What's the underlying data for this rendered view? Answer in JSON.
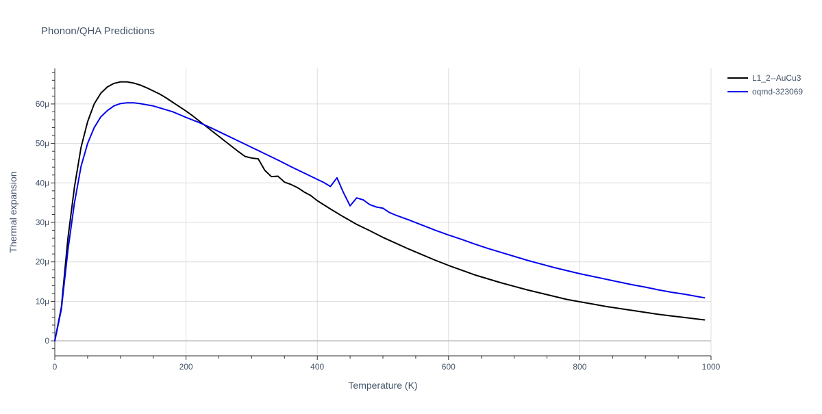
{
  "page": {
    "title": "Phonon/QHA Predictions"
  },
  "chart_data": {
    "type": "line",
    "title": "Phonon/QHA Predictions",
    "xlabel": "Temperature (K)",
    "ylabel": "Thermal expansion",
    "xlim": [
      0,
      1000
    ],
    "ylim": [
      -3.8e-06,
      6.9e-05
    ],
    "x_ticks": [
      0,
      200,
      400,
      600,
      800,
      1000
    ],
    "x_tick_labels": [
      "0",
      "200",
      "400",
      "600",
      "800",
      "1000"
    ],
    "y_ticks": [
      0,
      1e-05,
      2e-05,
      3e-05,
      4e-05,
      5e-05,
      6e-05
    ],
    "y_tick_labels": [
      "0",
      "10μ",
      "20μ",
      "30μ",
      "40μ",
      "50μ",
      "60μ"
    ],
    "grid": true,
    "legend_position": "top-right outside",
    "series": [
      {
        "name": "L1_2--AuCu3",
        "color": "#000000",
        "points": [
          [
            0,
            0
          ],
          [
            10,
            8.5e-06
          ],
          [
            20,
            2.6e-05
          ],
          [
            30,
            3.9e-05
          ],
          [
            40,
            4.9e-05
          ],
          [
            50,
            5.55e-05
          ],
          [
            60,
            6e-05
          ],
          [
            70,
            6.27e-05
          ],
          [
            80,
            6.43e-05
          ],
          [
            90,
            6.52e-05
          ],
          [
            100,
            6.56e-05
          ],
          [
            110,
            6.56e-05
          ],
          [
            120,
            6.53e-05
          ],
          [
            130,
            6.48e-05
          ],
          [
            140,
            6.41e-05
          ],
          [
            150,
            6.33e-05
          ],
          [
            160,
            6.25e-05
          ],
          [
            170,
            6.15e-05
          ],
          [
            180,
            6.04e-05
          ],
          [
            190,
            5.93e-05
          ],
          [
            200,
            5.82e-05
          ],
          [
            210,
            5.7e-05
          ],
          [
            220,
            5.57e-05
          ],
          [
            230,
            5.44e-05
          ],
          [
            240,
            5.31e-05
          ],
          [
            250,
            5.18e-05
          ],
          [
            260,
            5.05e-05
          ],
          [
            270,
            4.92e-05
          ],
          [
            280,
            4.79e-05
          ],
          [
            290,
            4.67e-05
          ],
          [
            300,
            4.63e-05
          ],
          [
            310,
            4.61e-05
          ],
          [
            320,
            4.32e-05
          ],
          [
            330,
            4.16e-05
          ],
          [
            340,
            4.17e-05
          ],
          [
            350,
            4.02e-05
          ],
          [
            360,
            3.96e-05
          ],
          [
            370,
            3.88e-05
          ],
          [
            380,
            3.77e-05
          ],
          [
            390,
            3.68e-05
          ],
          [
            400,
            3.55e-05
          ],
          [
            420,
            3.34e-05
          ],
          [
            440,
            3.14e-05
          ],
          [
            460,
            2.95e-05
          ],
          [
            480,
            2.79e-05
          ],
          [
            500,
            2.62e-05
          ],
          [
            520,
            2.47e-05
          ],
          [
            540,
            2.32e-05
          ],
          [
            560,
            2.18e-05
          ],
          [
            580,
            2.04e-05
          ],
          [
            600,
            1.91e-05
          ],
          [
            620,
            1.79e-05
          ],
          [
            640,
            1.67e-05
          ],
          [
            660,
            1.57e-05
          ],
          [
            680,
            1.47e-05
          ],
          [
            700,
            1.38e-05
          ],
          [
            720,
            1.29e-05
          ],
          [
            740,
            1.21e-05
          ],
          [
            760,
            1.13e-05
          ],
          [
            780,
            1.05e-05
          ],
          [
            800,
            9.9e-06
          ],
          [
            820,
            9.3e-06
          ],
          [
            840,
            8.7e-06
          ],
          [
            860,
            8.2e-06
          ],
          [
            880,
            7.7e-06
          ],
          [
            900,
            7.2e-06
          ],
          [
            920,
            6.7e-06
          ],
          [
            940,
            6.3e-06
          ],
          [
            960,
            5.9e-06
          ],
          [
            980,
            5.5e-06
          ],
          [
            990,
            5.3e-06
          ]
        ]
      },
      {
        "name": "oqmd-323069",
        "color": "#0000ee",
        "points": [
          [
            0,
            0
          ],
          [
            10,
            8e-06
          ],
          [
            20,
            2.3e-05
          ],
          [
            30,
            3.5e-05
          ],
          [
            40,
            4.42e-05
          ],
          [
            50,
            5e-05
          ],
          [
            60,
            5.4e-05
          ],
          [
            70,
            5.67e-05
          ],
          [
            80,
            5.83e-05
          ],
          [
            90,
            5.95e-05
          ],
          [
            100,
            6.01e-05
          ],
          [
            110,
            6.03e-05
          ],
          [
            120,
            6.03e-05
          ],
          [
            130,
            6.01e-05
          ],
          [
            140,
            5.98e-05
          ],
          [
            150,
            5.95e-05
          ],
          [
            160,
            5.9e-05
          ],
          [
            170,
            5.85e-05
          ],
          [
            180,
            5.8e-05
          ],
          [
            190,
            5.73e-05
          ],
          [
            200,
            5.66e-05
          ],
          [
            220,
            5.53e-05
          ],
          [
            240,
            5.38e-05
          ],
          [
            260,
            5.22e-05
          ],
          [
            280,
            5.06e-05
          ],
          [
            300,
            4.9e-05
          ],
          [
            320,
            4.74e-05
          ],
          [
            340,
            4.58e-05
          ],
          [
            360,
            4.41e-05
          ],
          [
            380,
            4.25e-05
          ],
          [
            400,
            4.09e-05
          ],
          [
            410,
            4.01e-05
          ],
          [
            420,
            3.91e-05
          ],
          [
            430,
            4.13e-05
          ],
          [
            440,
            3.75e-05
          ],
          [
            450,
            3.42e-05
          ],
          [
            460,
            3.62e-05
          ],
          [
            470,
            3.57e-05
          ],
          [
            480,
            3.45e-05
          ],
          [
            490,
            3.39e-05
          ],
          [
            500,
            3.36e-05
          ],
          [
            510,
            3.25e-05
          ],
          [
            520,
            3.18e-05
          ],
          [
            540,
            3.06e-05
          ],
          [
            560,
            2.93e-05
          ],
          [
            580,
            2.8e-05
          ],
          [
            600,
            2.68e-05
          ],
          [
            620,
            2.57e-05
          ],
          [
            640,
            2.45e-05
          ],
          [
            660,
            2.34e-05
          ],
          [
            680,
            2.24e-05
          ],
          [
            700,
            2.14e-05
          ],
          [
            720,
            2.04e-05
          ],
          [
            740,
            1.95e-05
          ],
          [
            760,
            1.86e-05
          ],
          [
            780,
            1.78e-05
          ],
          [
            800,
            1.7e-05
          ],
          [
            820,
            1.63e-05
          ],
          [
            840,
            1.56e-05
          ],
          [
            860,
            1.49e-05
          ],
          [
            880,
            1.42e-05
          ],
          [
            900,
            1.36e-05
          ],
          [
            920,
            1.29e-05
          ],
          [
            940,
            1.23e-05
          ],
          [
            960,
            1.18e-05
          ],
          [
            980,
            1.12e-05
          ],
          [
            990,
            1.09e-05
          ]
        ]
      }
    ]
  }
}
